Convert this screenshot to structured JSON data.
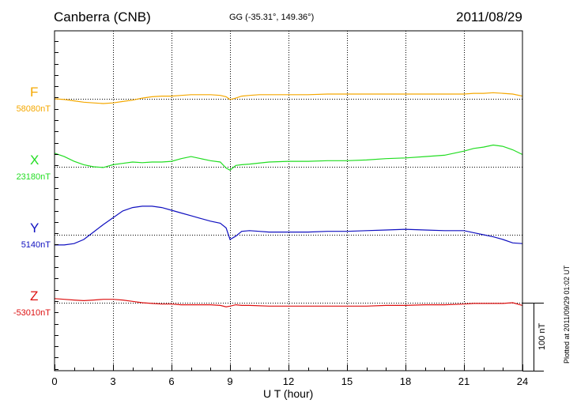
{
  "header": {
    "station": "Canberra (CNB)",
    "coordinates": "GG (-35.31°, 149.36°)",
    "date": "2011/08/29"
  },
  "plotted_note": "Plotted at 2011/09/29 01:02 UT",
  "scale_bar": {
    "label": "100 nT",
    "value_nT": 100
  },
  "colors": {
    "F": "#f5a800",
    "X": "#22dd22",
    "Y": "#1010c0",
    "Z": "#dd1111"
  },
  "chart_data": {
    "type": "line",
    "xlabel": "U T (hour)",
    "xlim": [
      0,
      24
    ],
    "xticks": [
      "0",
      "3",
      "6",
      "9",
      "12",
      "15",
      "18",
      "21",
      "24"
    ],
    "grid": true,
    "series": [
      {
        "name": "F",
        "baseline_label": "58080nT",
        "baseline_nT": 58080,
        "x": [
          0,
          0.5,
          1,
          1.5,
          2,
          2.5,
          3,
          3.5,
          4,
          4.5,
          5,
          5.5,
          6,
          6.5,
          7,
          7.5,
          8,
          8.5,
          8.8,
          9,
          9.3,
          9.6,
          10,
          10.5,
          11,
          12,
          13,
          14,
          15,
          16,
          17,
          18,
          19,
          20,
          21,
          21.5,
          22,
          22.5,
          23,
          23.5,
          24
        ],
        "y": [
          58080,
          58079,
          58077,
          58075,
          58074,
          58073,
          58074,
          58076,
          58078,
          58081,
          58083,
          58084,
          58084,
          58085,
          58086,
          58086,
          58086,
          58085,
          58083,
          58079,
          58081,
          58084,
          58085,
          58086,
          58086,
          58086,
          58086,
          58087,
          58087,
          58087,
          58087,
          58087,
          58087,
          58087,
          58087,
          58088,
          58088,
          58089,
          58088,
          58087,
          58084
        ]
      },
      {
        "name": "X",
        "baseline_label": "23180nT",
        "baseline_nT": 23180,
        "x": [
          0,
          0.5,
          1,
          1.5,
          2,
          2.5,
          3,
          3.5,
          4,
          4.5,
          5,
          5.5,
          6,
          6.5,
          7,
          7.5,
          8,
          8.5,
          8.8,
          9,
          9.3,
          9.6,
          10,
          11,
          12,
          13,
          14,
          15,
          16,
          17,
          18,
          19,
          20,
          21,
          21.5,
          22,
          22.5,
          23,
          23.5,
          24
        ],
        "y": [
          23200,
          23195,
          23188,
          23183,
          23180,
          23179,
          23183,
          23185,
          23187,
          23186,
          23187,
          23187,
          23188,
          23192,
          23195,
          23192,
          23189,
          23187,
          23178,
          23175,
          23182,
          23183,
          23184,
          23187,
          23188,
          23188,
          23189,
          23189,
          23190,
          23192,
          23193,
          23195,
          23197,
          23203,
          23207,
          23209,
          23212,
          23210,
          23205,
          23198
        ]
      },
      {
        "name": "Y",
        "baseline_label": "5140nT",
        "baseline_nT": 5140,
        "x": [
          0,
          0.5,
          1,
          1.5,
          2,
          2.5,
          3,
          3.5,
          4,
          4.5,
          5,
          5.5,
          6,
          6.5,
          7,
          7.5,
          8,
          8.5,
          8.8,
          9,
          9.3,
          9.6,
          10,
          10.5,
          11,
          12,
          13,
          14,
          15,
          16,
          17,
          18,
          19,
          20,
          21,
          21.5,
          22,
          22.5,
          23,
          23.5,
          24
        ],
        "y": [
          5125,
          5125,
          5127,
          5133,
          5144,
          5155,
          5165,
          5175,
          5180,
          5182,
          5182,
          5180,
          5176,
          5172,
          5168,
          5164,
          5160,
          5157,
          5150,
          5133,
          5138,
          5145,
          5146,
          5145,
          5144,
          5144,
          5144,
          5145,
          5145,
          5146,
          5147,
          5148,
          5147,
          5146,
          5146,
          5143,
          5140,
          5137,
          5133,
          5128,
          5127
        ]
      },
      {
        "name": "Z",
        "baseline_label": "-53010nT",
        "baseline_nT": -53010,
        "x": [
          0,
          0.5,
          1,
          1.5,
          2,
          2.5,
          3,
          3.5,
          4,
          4.5,
          5,
          5.5,
          6,
          6.5,
          7,
          7.5,
          8,
          8.5,
          8.8,
          9,
          9.3,
          9.6,
          10,
          11,
          12,
          13,
          14,
          15,
          16,
          17,
          18,
          19,
          20,
          21,
          21.5,
          22,
          22.5,
          23,
          23.5,
          24
        ],
        "y": [
          -53004,
          -53005,
          -53006,
          -53007,
          -53006,
          -53005,
          -53005,
          -53006,
          -53008,
          -53010,
          -53011,
          -53012,
          -53012,
          -53013,
          -53013,
          -53013,
          -53013,
          -53014,
          -53016,
          -53015,
          -53013,
          -53014,
          -53014,
          -53015,
          -53015,
          -53015,
          -53015,
          -53015,
          -53015,
          -53014,
          -53014,
          -53013,
          -53013,
          -53012,
          -53011,
          -53011,
          -53011,
          -53011,
          -53010,
          -53014
        ]
      }
    ]
  }
}
